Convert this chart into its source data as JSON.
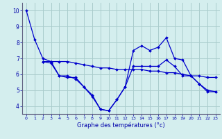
{
  "title": "Graphe des températures (°c)",
  "background_color": "#d4eeee",
  "grid_color": "#aacccc",
  "line_color": "#0000cc",
  "xlim": [
    -0.5,
    23.5
  ],
  "ylim": [
    3.5,
    10.5
  ],
  "xticks": [
    0,
    1,
    2,
    3,
    4,
    5,
    6,
    7,
    8,
    9,
    10,
    11,
    12,
    13,
    14,
    15,
    16,
    17,
    18,
    19,
    20,
    21,
    22,
    23
  ],
  "yticks": [
    4,
    5,
    6,
    7,
    8,
    9,
    10
  ],
  "series": [
    {
      "x": [
        0,
        1,
        2,
        3,
        4,
        5,
        6,
        7,
        8,
        9,
        10,
        11,
        12,
        13,
        14,
        15,
        16,
        17,
        18,
        19,
        20,
        21,
        22,
        23
      ],
      "y": [
        10.0,
        8.2,
        7.0,
        6.8,
        5.9,
        5.8,
        5.8,
        5.2,
        4.7,
        3.8,
        3.7,
        4.4,
        5.2,
        6.5,
        6.5,
        6.5,
        6.5,
        6.9,
        6.5,
        5.9,
        5.9,
        5.4,
        4.9,
        4.9
      ]
    },
    {
      "x": [
        2,
        3,
        4,
        5,
        6,
        7,
        8,
        9,
        10,
        11,
        12,
        13,
        14,
        15,
        16,
        17,
        18,
        19,
        20,
        21,
        22,
        23
      ],
      "y": [
        6.8,
        6.8,
        6.8,
        6.8,
        6.7,
        6.6,
        6.5,
        6.4,
        6.4,
        6.3,
        6.3,
        6.3,
        6.3,
        6.2,
        6.2,
        6.1,
        6.1,
        6.0,
        5.9,
        5.9,
        5.8,
        5.8
      ]
    },
    {
      "x": [
        2,
        3,
        4,
        5,
        6,
        7,
        8,
        9,
        10,
        11,
        12,
        13,
        14,
        15,
        16,
        17,
        18,
        19,
        20,
        21,
        22,
        23
      ],
      "y": [
        6.8,
        6.7,
        5.9,
        5.9,
        5.7,
        5.2,
        4.6,
        3.8,
        3.7,
        4.4,
        5.2,
        7.5,
        7.8,
        7.5,
        7.7,
        8.3,
        7.0,
        6.9,
        5.9,
        5.4,
        5.0,
        4.9
      ]
    }
  ]
}
